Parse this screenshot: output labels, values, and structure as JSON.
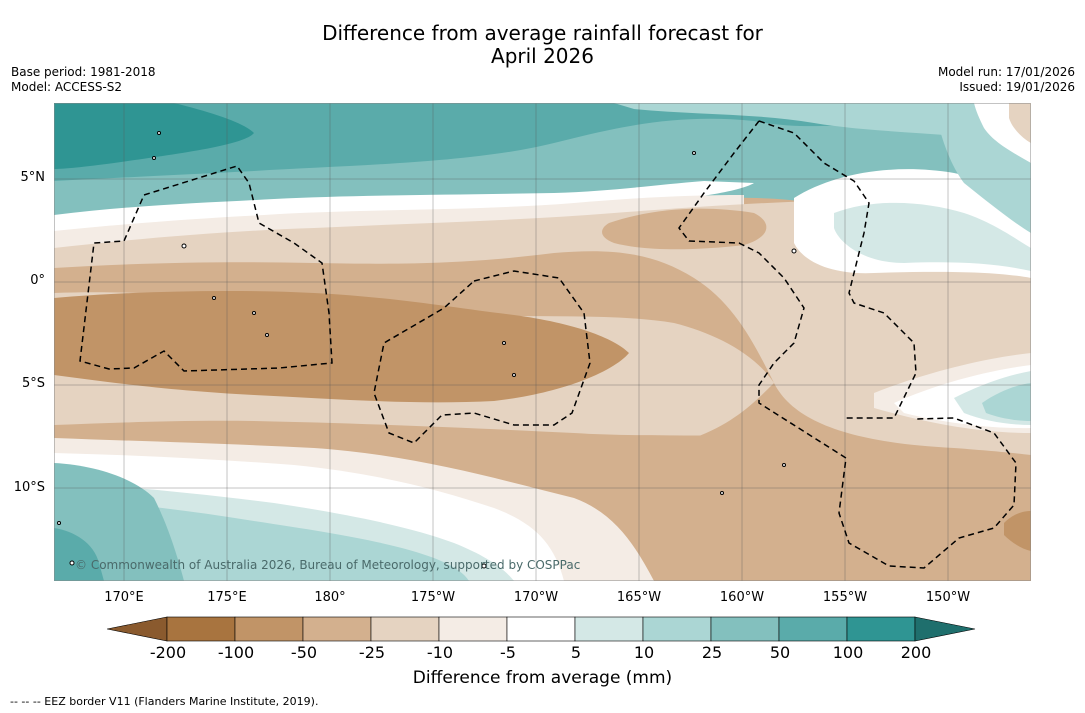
{
  "title_line1": "Difference from average rainfall forecast for",
  "title_line2": "April 2026",
  "base_period": "Base period: 1981-2018",
  "model": "Model: ACCESS-S2",
  "model_run": "Model run: 17/01/2026",
  "issued": "Issued: 19/01/2026",
  "lon_labels": [
    "170°E",
    "175°E",
    "180°",
    "175°W",
    "170°W",
    "165°W",
    "160°W",
    "155°W",
    "150°W"
  ],
  "lat_labels": [
    "5°N",
    "0°",
    "5°S",
    "10°S"
  ],
  "copyright": "© Commonwealth of Australia 2026, Bureau of Meteorology, supported by COSPPac",
  "legend": {
    "title": "Difference from average (mm)",
    "ticks": [
      "-200",
      "-100",
      "-50",
      "-25",
      "-10",
      "-5",
      "5",
      "10",
      "25",
      "50",
      "100",
      "200"
    ],
    "colors": {
      "lt200": "#8a5a2e",
      "n200_100": "#a8743f",
      "n100_50": "#c19467",
      "n50_25": "#d3b08e",
      "n25_10": "#e5d3c1",
      "n10_5": "#f4ece5",
      "n5_5": "#ffffff",
      "p5_10": "#d4e8e6",
      "p10_25": "#abd6d4",
      "p25_50": "#83c0be",
      "p50_100": "#5aabaa",
      "p100_200": "#2f9593",
      "gt200": "#1f6f6d"
    }
  },
  "footnote": "--  --  -- EEZ border V11 (Flanders Marine Institute, 2019)."
}
